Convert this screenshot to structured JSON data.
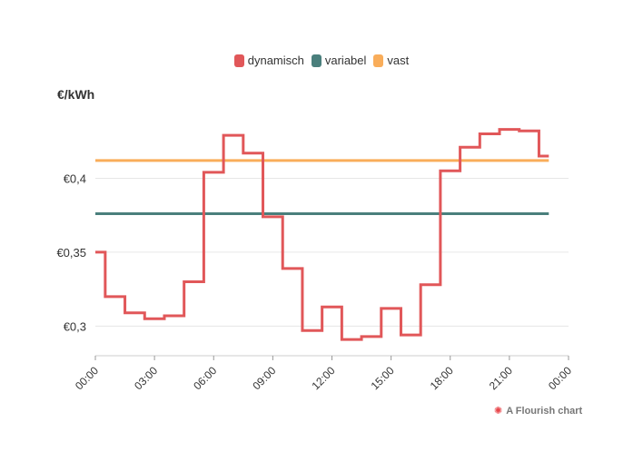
{
  "chart_data": {
    "type": "line",
    "title": "",
    "ylabel": "€/kWh",
    "xlabel": "",
    "ylim": [
      0.28,
      0.442
    ],
    "xlim": [
      0,
      24
    ],
    "y_ticks": [
      0.3,
      0.35,
      0.4
    ],
    "y_tick_labels": [
      "€0,3",
      "€0,35",
      "€0,4"
    ],
    "x_ticks": [
      0,
      3,
      6,
      9,
      12,
      15,
      18,
      21,
      24
    ],
    "x_tick_labels": [
      "00:00",
      "03:00",
      "06:00",
      "09:00",
      "12:00",
      "15:00",
      "18:00",
      "21:00",
      "00:00"
    ],
    "grid": true,
    "legend_position": "top-center",
    "series": [
      {
        "name": "dynamisch",
        "color": "#e15759",
        "style": "step",
        "x": [
          0,
          0.5,
          1.5,
          2.5,
          3.5,
          4.5,
          5.5,
          6.5,
          7.5,
          8.5,
          9.5,
          10.5,
          11.5,
          12.5,
          13.5,
          14.5,
          15.5,
          16.5,
          17.5,
          18.5,
          19.5,
          20.5,
          21.5,
          22.5,
          23
        ],
        "values": [
          0.35,
          0.32,
          0.309,
          0.305,
          0.307,
          0.33,
          0.404,
          0.429,
          0.417,
          0.374,
          0.339,
          0.297,
          0.313,
          0.291,
          0.293,
          0.312,
          0.294,
          0.328,
          0.405,
          0.421,
          0.43,
          0.433,
          0.432,
          0.415,
          0.415
        ]
      },
      {
        "name": "variabel",
        "color": "#4a7f7c",
        "style": "line",
        "x": [
          0,
          23
        ],
        "values": [
          0.376,
          0.376
        ]
      },
      {
        "name": "vast",
        "color": "#f9ad5a",
        "style": "line",
        "x": [
          0,
          23
        ],
        "values": [
          0.412,
          0.412
        ]
      }
    ]
  },
  "attribution": {
    "label": "A Flourish chart",
    "icon": "flourish-logo-icon"
  }
}
